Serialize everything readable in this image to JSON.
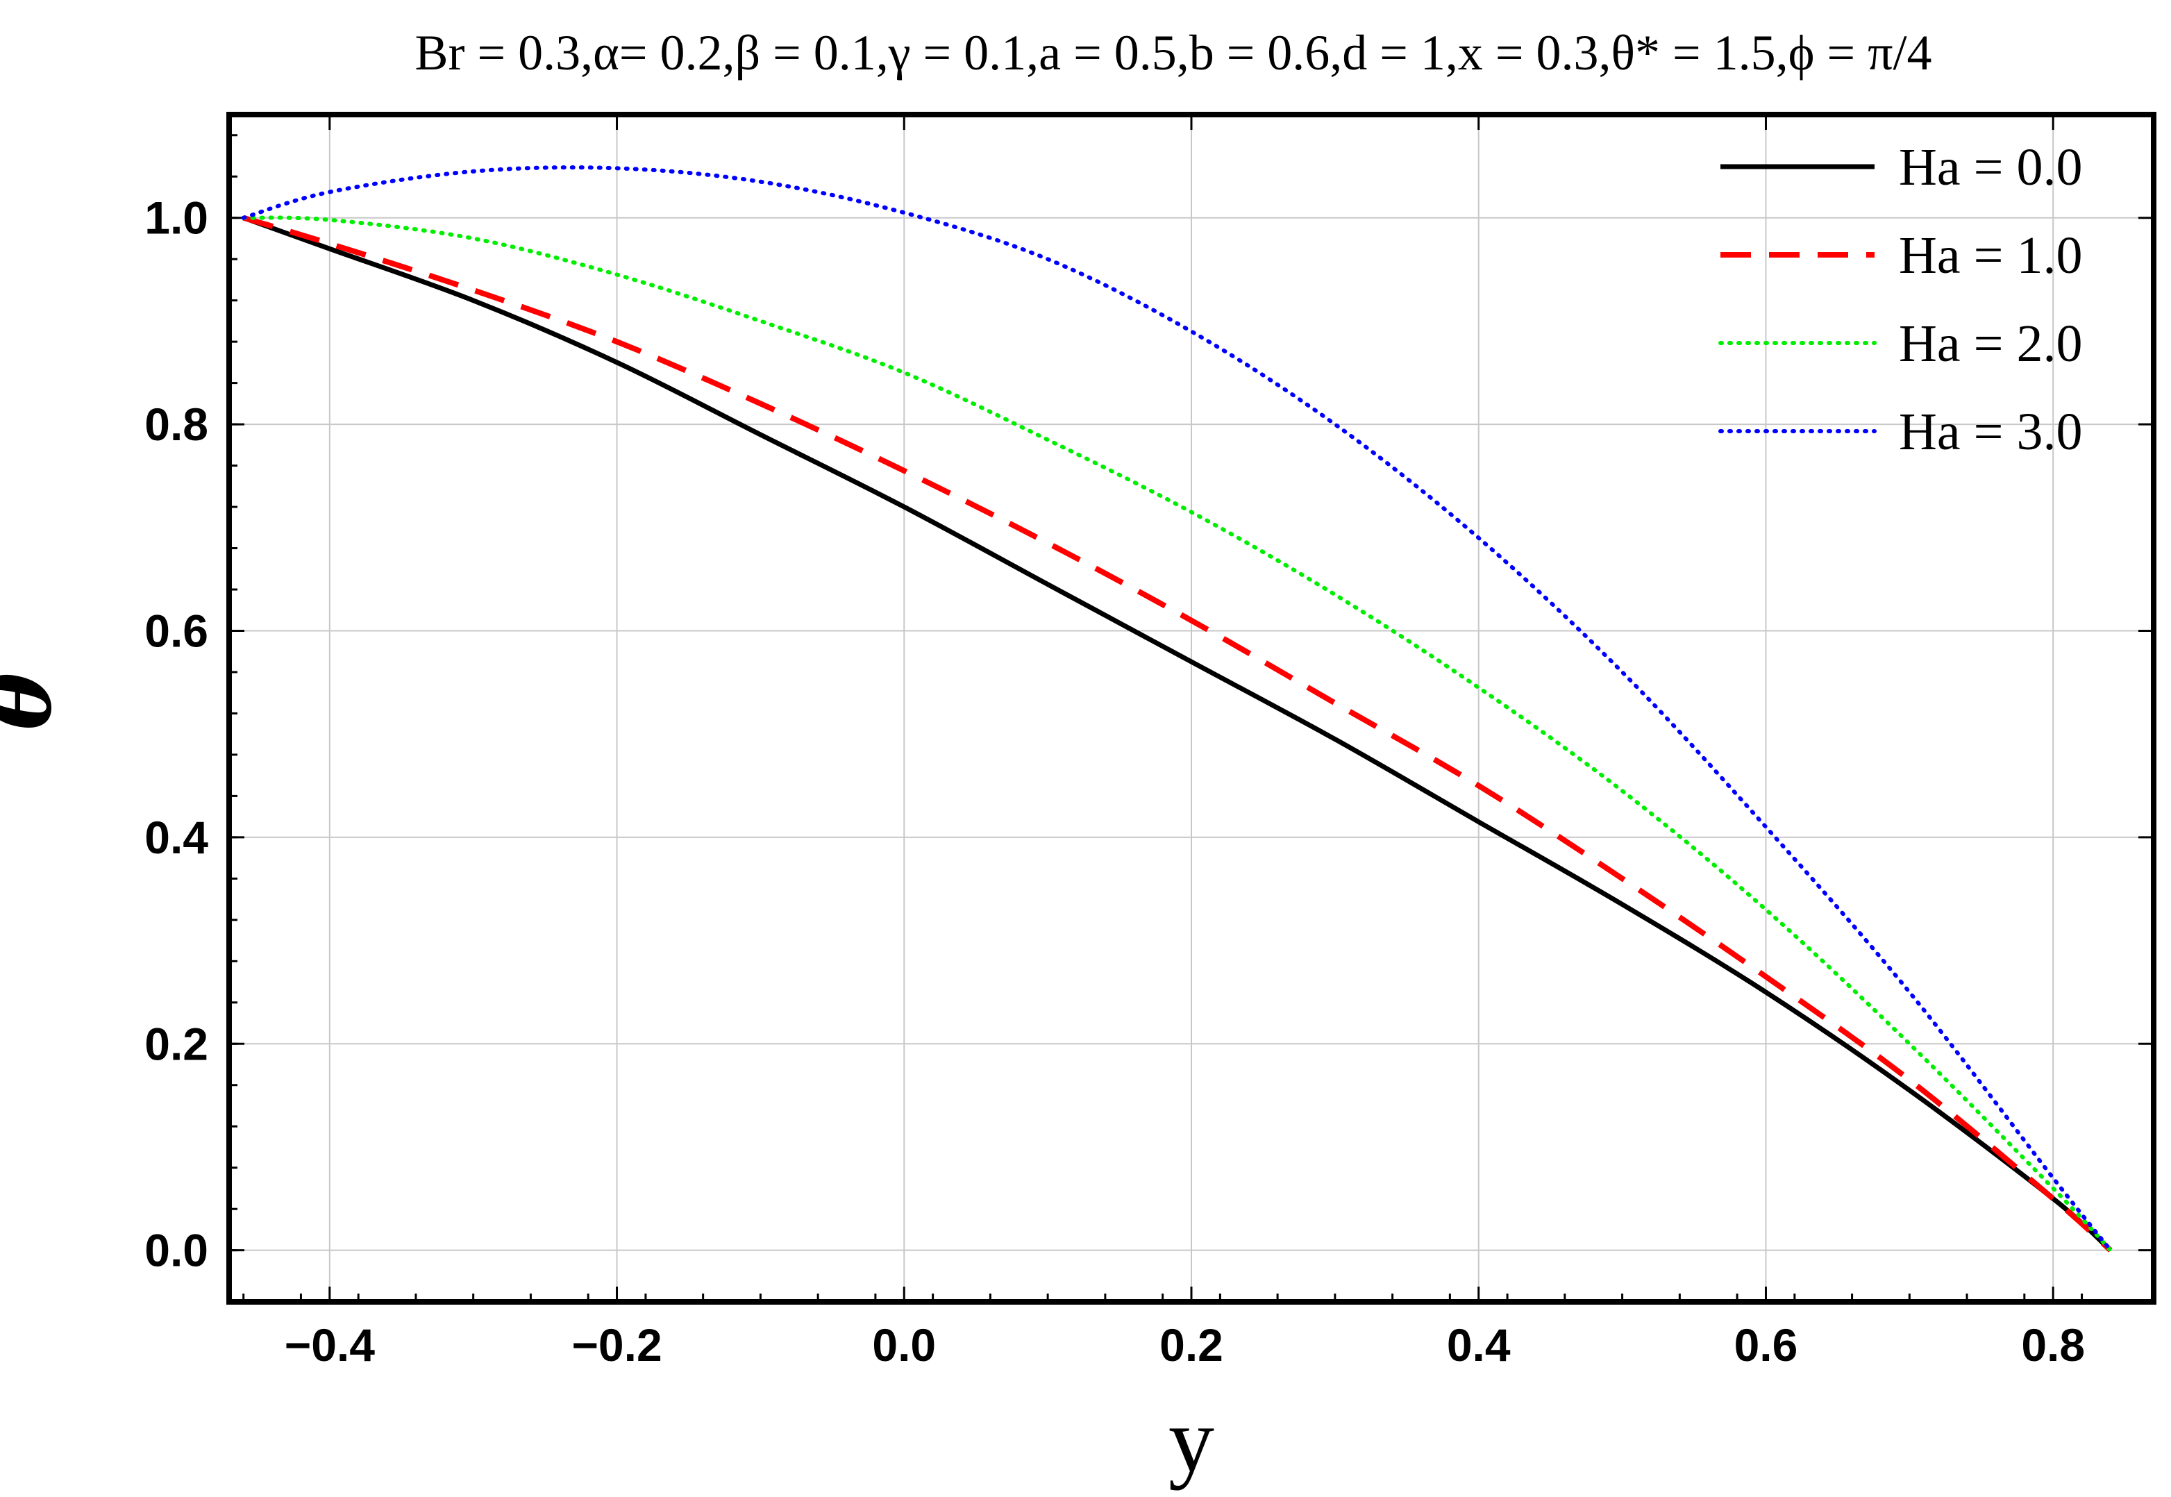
{
  "chart_data": {
    "type": "line",
    "title": "Br = 0.3,α= 0.2,β = 0.1,γ = 0.1,a = 0.5,b = 0.6,d = 1,x = 0.3,θ* = 1.5,ϕ = π/4",
    "xlabel": "y",
    "ylabel": "θ",
    "xlim": [
      -0.47,
      0.87
    ],
    "ylim": [
      -0.05,
      1.1
    ],
    "xticks": [
      -0.4,
      -0.2,
      0.0,
      0.2,
      0.4,
      0.6,
      0.8
    ],
    "xtick_labels": [
      "−0.4",
      "−0.2",
      "0.0",
      "0.2",
      "0.4",
      "0.6",
      "0.8"
    ],
    "yticks": [
      0.0,
      0.2,
      0.4,
      0.6,
      0.8,
      1.0
    ],
    "ytick_labels": [
      "0.0",
      "0.2",
      "0.4",
      "0.6",
      "0.8",
      "1.0"
    ],
    "grid": true,
    "legend_position": "top-right",
    "x": [
      -0.46,
      -0.4,
      -0.3,
      -0.2,
      -0.1,
      0.0,
      0.1,
      0.2,
      0.3,
      0.4,
      0.5,
      0.6,
      0.7,
      0.8,
      0.84
    ],
    "series": [
      {
        "name": "Ha = 0.0",
        "color": "#000000",
        "style": "solid",
        "values": [
          1.0,
          0.97,
          0.92,
          0.86,
          0.79,
          0.72,
          0.645,
          0.57,
          0.495,
          0.415,
          0.335,
          0.25,
          0.155,
          0.05,
          0.0
        ]
      },
      {
        "name": "Ha = 1.0",
        "color": "#ff0000",
        "style": "dashed",
        "values": [
          1.0,
          0.975,
          0.93,
          0.88,
          0.82,
          0.755,
          0.685,
          0.61,
          0.53,
          0.45,
          0.36,
          0.265,
          0.165,
          0.05,
          0.0
        ]
      },
      {
        "name": "Ha = 2.0",
        "color": "#00ee00",
        "style": "dotted",
        "values": [
          1.0,
          0.998,
          0.98,
          0.945,
          0.9,
          0.85,
          0.785,
          0.715,
          0.635,
          0.545,
          0.445,
          0.33,
          0.2,
          0.06,
          0.0
        ]
      },
      {
        "name": "Ha = 3.0",
        "color": "#0000ff",
        "style": "dotted",
        "values": [
          1.0,
          1.025,
          1.045,
          1.048,
          1.035,
          1.005,
          0.96,
          0.89,
          0.8,
          0.69,
          0.56,
          0.41,
          0.25,
          0.07,
          0.0
        ]
      }
    ]
  }
}
